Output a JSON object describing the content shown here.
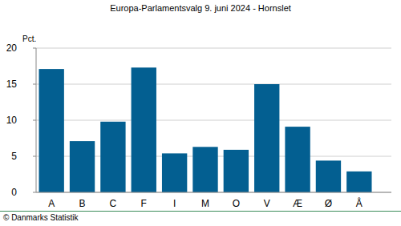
{
  "chart_data": {
    "type": "bar",
    "title": "Europa-Parlamentsvalg 9. juni 2024 - Hornslet",
    "y_label": "Pct.",
    "source": "© Danmarks Statistik",
    "categories": [
      "A",
      "B",
      "C",
      "F",
      "I",
      "M",
      "O",
      "V",
      "Æ",
      "Ø",
      "Å"
    ],
    "values": [
      17.1,
      7.1,
      9.8,
      17.3,
      5.4,
      6.3,
      5.9,
      15.0,
      9.1,
      4.4,
      2.9
    ],
    "color": "#035f91",
    "ylim": [
      0,
      20
    ],
    "yticks": [
      0,
      5,
      10,
      15,
      20
    ],
    "grid": true
  }
}
